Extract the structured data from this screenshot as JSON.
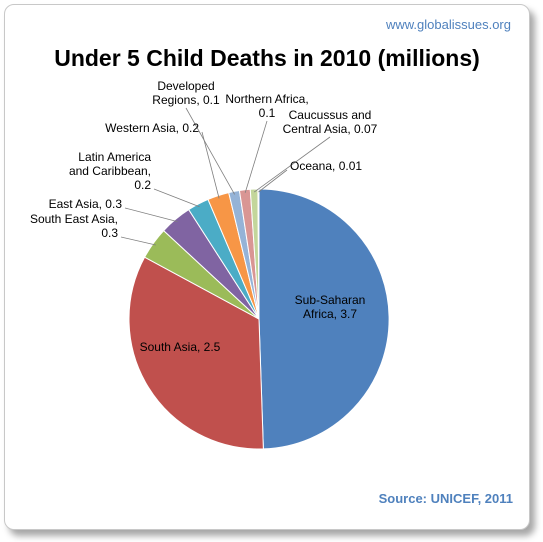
{
  "header": {
    "site": "www.globalissues.org"
  },
  "footer": {
    "source": "Source: UNICEF, 2011"
  },
  "chart_data": {
    "type": "pie",
    "title": "Under 5 Child Deaths in 2010 (millions)",
    "slices": [
      {
        "label": "Sub-Saharan Africa, 3.7",
        "value": 3.7,
        "color": "#4f81bd"
      },
      {
        "label": "South Asia, 2.5",
        "value": 2.5,
        "color": "#c0504d"
      },
      {
        "label": "South East Asia, 0.3",
        "value": 0.3,
        "color": "#9bbb59"
      },
      {
        "label": "East Asia, 0.3",
        "value": 0.3,
        "color": "#8064a2"
      },
      {
        "label": "Latin America and Caribbean, 0.2",
        "value": 0.2,
        "color": "#4bacc6"
      },
      {
        "label": "Western Asia, 0.2",
        "value": 0.2,
        "color": "#f79646"
      },
      {
        "label": "Developed Regions, 0.1",
        "value": 0.1,
        "color": "#95b3d7"
      },
      {
        "label": "Northern Africa, 0.1",
        "value": 0.1,
        "color": "#d99694"
      },
      {
        "label": "Caucussus and Central Asia, 0.07",
        "value": 0.07,
        "color": "#c3d69b"
      },
      {
        "label": "Oceana, 0.01",
        "value": 0.01,
        "color": "#b3a2c7"
      }
    ]
  }
}
